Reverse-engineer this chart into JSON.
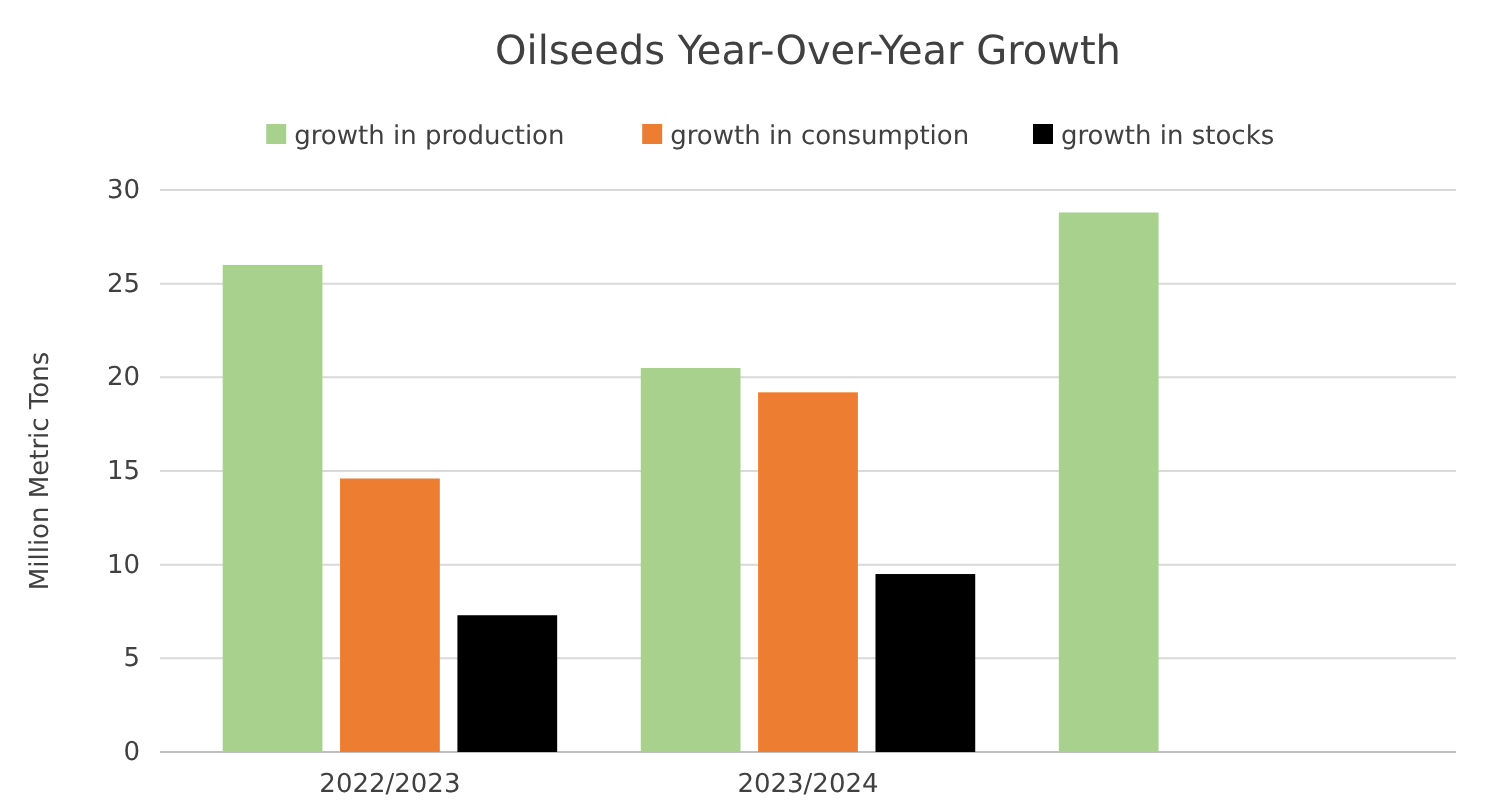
{
  "chart_data": {
    "type": "bar",
    "title": "Oilseeds Year-Over-Year Growth",
    "ylabel": "Million Metric Tons",
    "categories": [
      "2022/2023",
      "2023/2024",
      null
    ],
    "series": [
      {
        "name": "growth in production",
        "color": "#a9d18e",
        "values": [
          26.0,
          20.5,
          28.8
        ]
      },
      {
        "name": "growth in consumption",
        "color": "#ed7d31",
        "values": [
          14.6,
          19.2,
          null
        ]
      },
      {
        "name": "growth in stocks",
        "color": "#000000",
        "values": [
          7.3,
          9.5,
          null
        ]
      }
    ],
    "ylim": [
      0,
      30
    ],
    "yticks": [
      0,
      5,
      10,
      15,
      20,
      25,
      30
    ],
    "grid": "y",
    "legend": "top"
  }
}
